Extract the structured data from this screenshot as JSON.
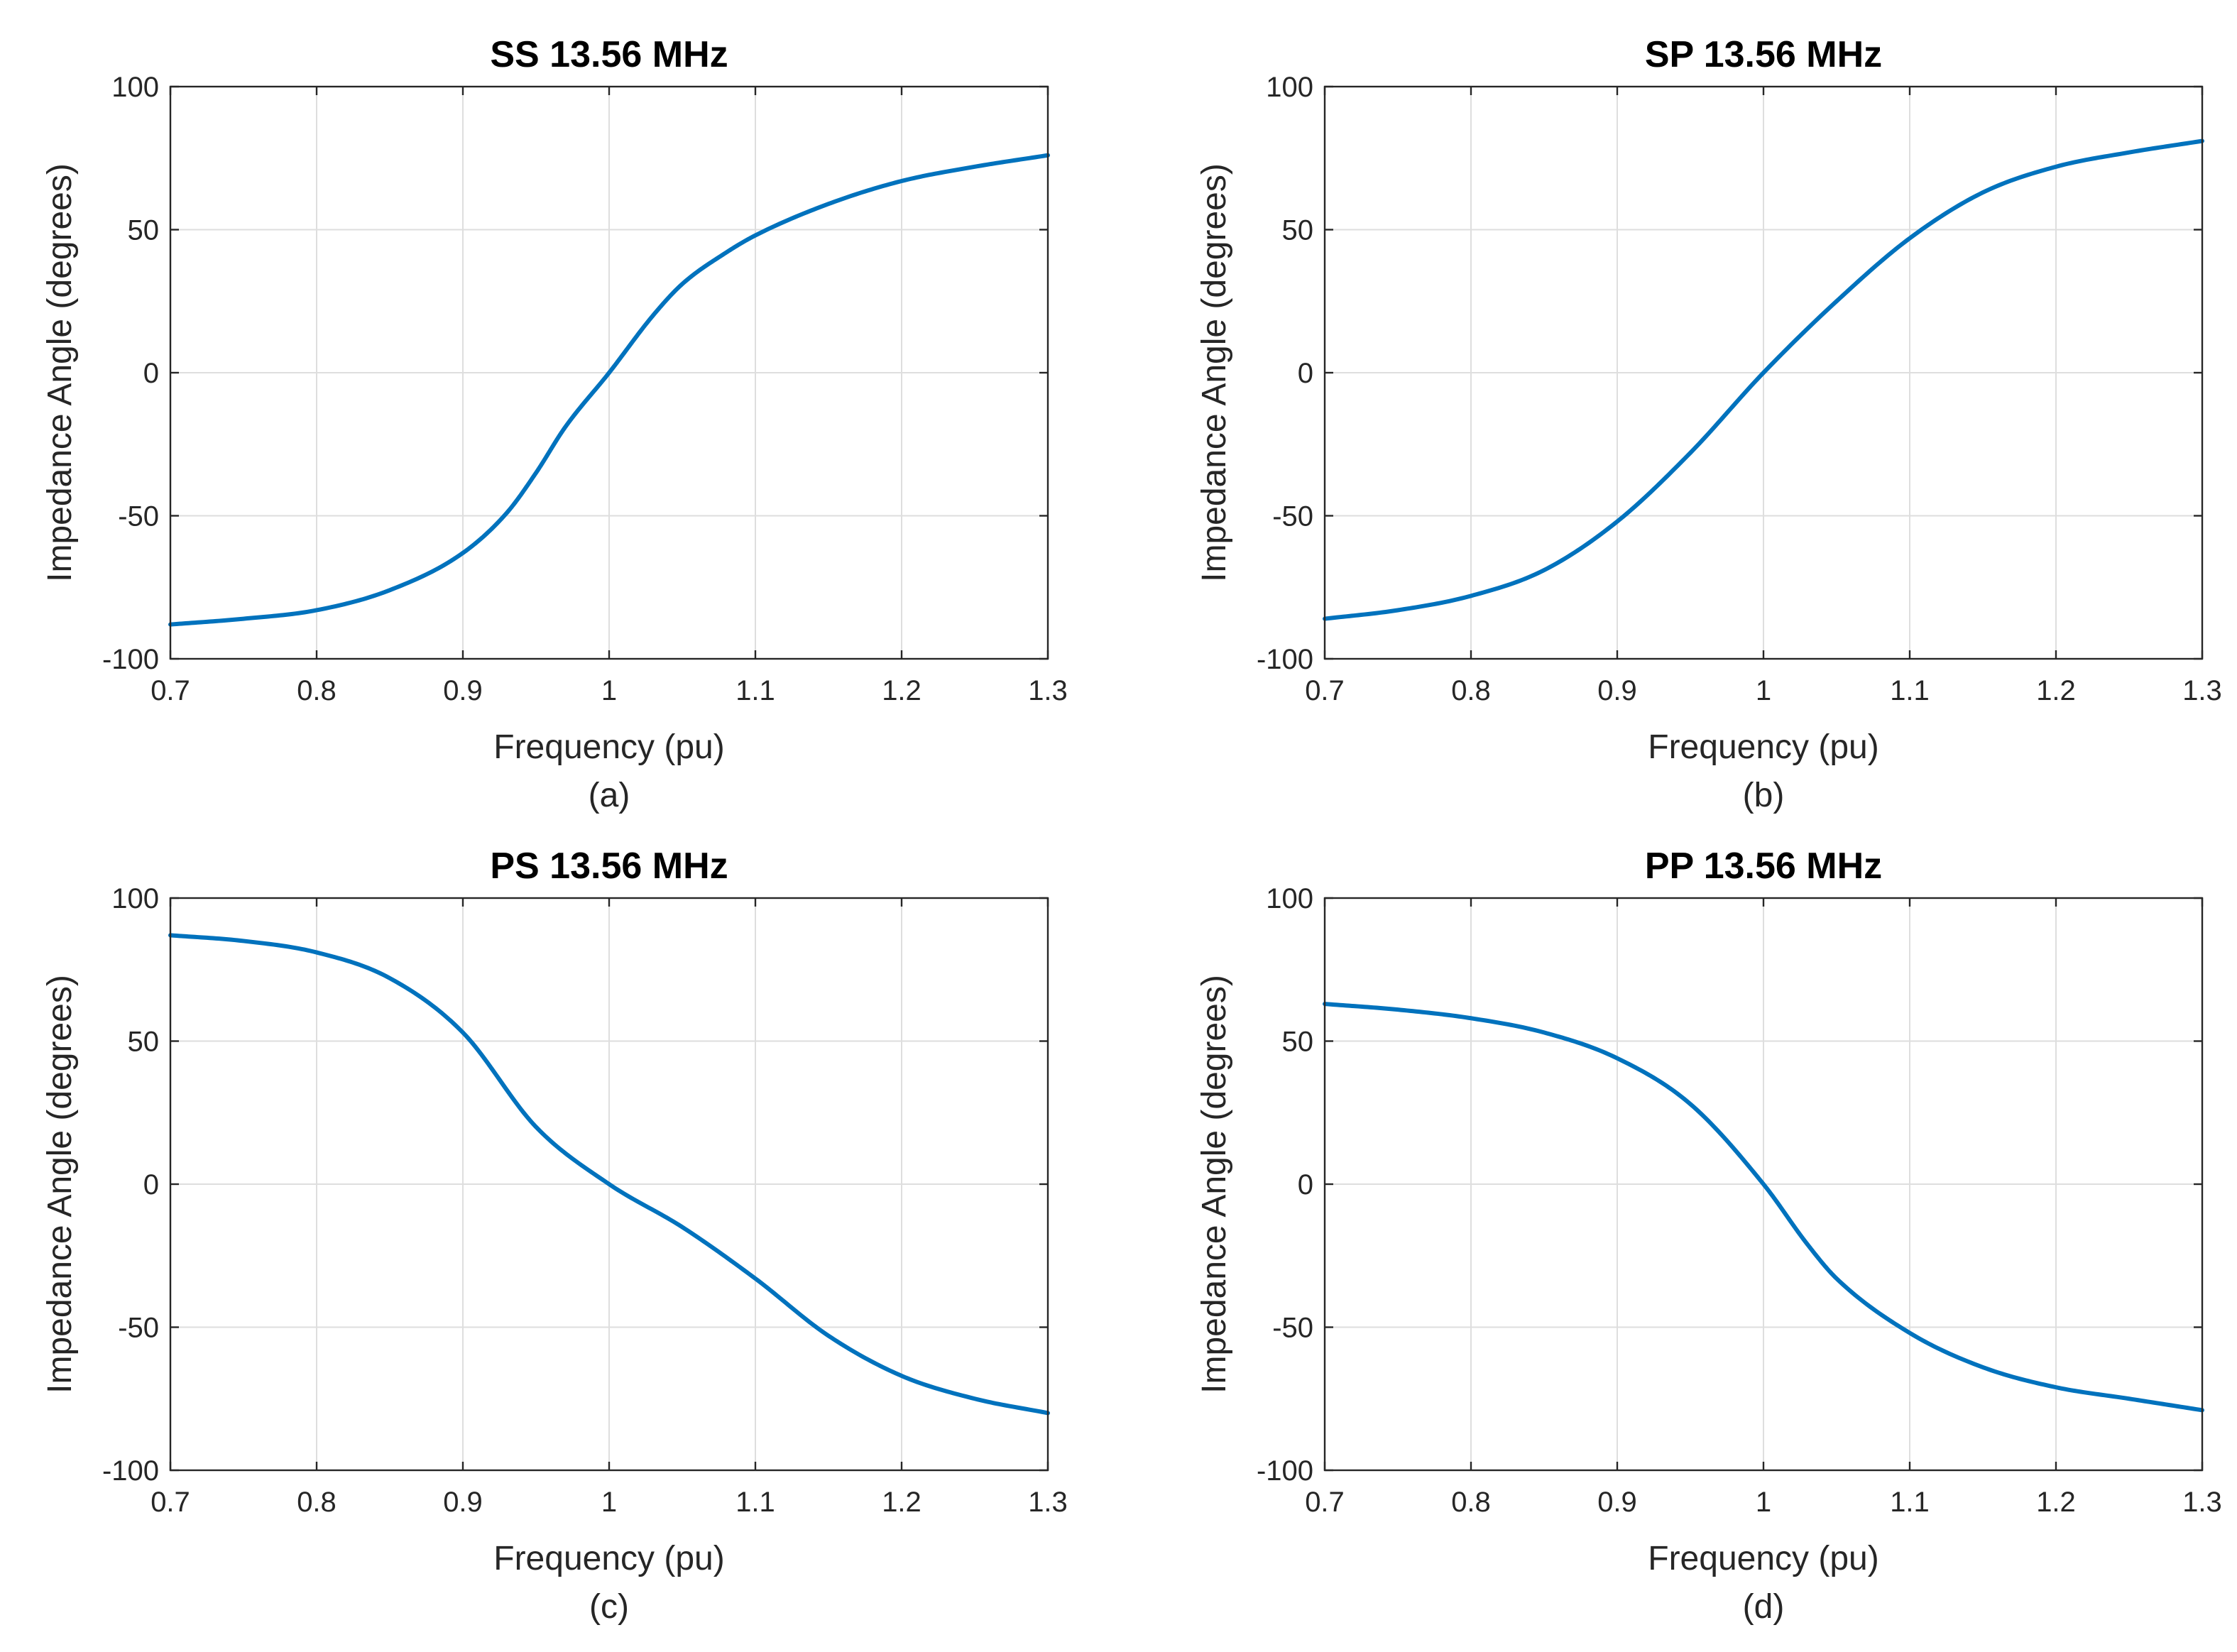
{
  "chart_data": [
    {
      "type": "line",
      "title": "SS 13.56 MHz",
      "xlabel": "Frequency (pu)",
      "ylabel": "Impedance Angle (degrees)",
      "caption": "(a)",
      "xlim": [
        0.7,
        1.3
      ],
      "ylim": [
        -100,
        100
      ],
      "xticks": [
        "0.7",
        "0.8",
        "0.9",
        "1",
        "1.1",
        "1.2",
        "1.3"
      ],
      "yticks": [
        "-100",
        "-50",
        "0",
        "50",
        "100"
      ],
      "grid": true,
      "color": "#0072bd",
      "series": [
        {
          "name": "SS",
          "x": [
            0.7,
            0.75,
            0.8,
            0.85,
            0.9,
            0.93,
            0.95,
            0.97,
            1.0,
            1.03,
            1.05,
            1.08,
            1.1,
            1.15,
            1.2,
            1.25,
            1.3
          ],
          "y": [
            -88,
            -86,
            -83,
            -76,
            -63,
            -49,
            -35,
            -19,
            0,
            20,
            31,
            42,
            48,
            59,
            67,
            72,
            76
          ]
        }
      ]
    },
    {
      "type": "line",
      "title": "SP 13.56 MHz",
      "xlabel": "Frequency (pu)",
      "ylabel": "Impedance Angle (degrees)",
      "caption": "(b)",
      "xlim": [
        0.7,
        1.3
      ],
      "ylim": [
        -100,
        100
      ],
      "xticks": [
        "0.7",
        "0.8",
        "0.9",
        "1",
        "1.1",
        "1.2",
        "1.3"
      ],
      "yticks": [
        "-100",
        "-50",
        "0",
        "50",
        "100"
      ],
      "grid": true,
      "color": "#0072bd",
      "series": [
        {
          "name": "SP",
          "x": [
            0.7,
            0.75,
            0.8,
            0.85,
            0.9,
            0.95,
            1.0,
            1.05,
            1.1,
            1.15,
            1.2,
            1.25,
            1.3
          ],
          "y": [
            -86,
            -83,
            -78,
            -69,
            -52,
            -28,
            0,
            25,
            47,
            63,
            72,
            77,
            81
          ]
        }
      ]
    },
    {
      "type": "line",
      "title": "PS 13.56 MHz",
      "xlabel": "Frequency (pu)",
      "ylabel": "Impedance Angle (degrees)",
      "caption": "(c)",
      "xlim": [
        0.7,
        1.3
      ],
      "ylim": [
        -100,
        100
      ],
      "xticks": [
        "0.7",
        "0.8",
        "0.9",
        "1",
        "1.1",
        "1.2",
        "1.3"
      ],
      "yticks": [
        "-100",
        "-50",
        "0",
        "50",
        "100"
      ],
      "grid": true,
      "color": "#0072bd",
      "series": [
        {
          "name": "PS",
          "x": [
            0.7,
            0.75,
            0.8,
            0.85,
            0.9,
            0.95,
            1.0,
            1.05,
            1.1,
            1.15,
            1.2,
            1.25,
            1.3
          ],
          "y": [
            87,
            85,
            81,
            72,
            53,
            20,
            0,
            -15,
            -33,
            -53,
            -67,
            -75,
            -80
          ]
        }
      ]
    },
    {
      "type": "line",
      "title": "PP 13.56 MHz",
      "xlabel": "Frequency (pu)",
      "ylabel": "Impedance Angle (degrees)",
      "caption": "(d)",
      "xlim": [
        0.7,
        1.3
      ],
      "ylim": [
        -100,
        100
      ],
      "xticks": [
        "0.7",
        "0.8",
        "0.9",
        "1",
        "1.1",
        "1.2",
        "1.3"
      ],
      "yticks": [
        "-100",
        "-50",
        "0",
        "50",
        "100"
      ],
      "grid": true,
      "color": "#0072bd",
      "series": [
        {
          "name": "PP",
          "x": [
            0.7,
            0.75,
            0.8,
            0.85,
            0.9,
            0.95,
            1.0,
            1.03,
            1.05,
            1.1,
            1.15,
            1.2,
            1.25,
            1.3
          ],
          "y": [
            63,
            61,
            58,
            53,
            44,
            28,
            0,
            -21,
            -33,
            -52,
            -64,
            -71,
            -75,
            -79
          ]
        }
      ]
    }
  ]
}
